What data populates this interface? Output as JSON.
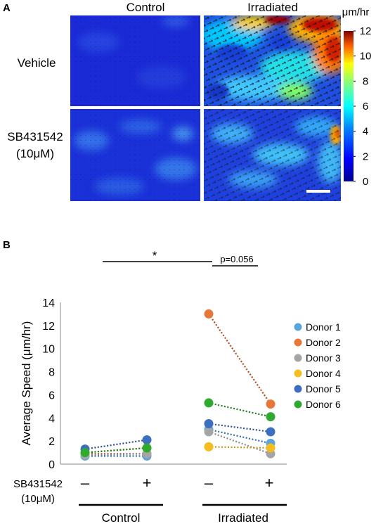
{
  "panel_a": {
    "label": "A",
    "col_labels": [
      "Control",
      "Irradiated"
    ],
    "row_labels": [
      [
        "Vehicle"
      ],
      [
        "SB431542",
        "(10μM)"
      ]
    ],
    "colorbar": {
      "unit": "μm/hr",
      "ticks": [
        0,
        2,
        4,
        6,
        8,
        10,
        12
      ]
    }
  },
  "panel_b": {
    "label": "B",
    "significance": {
      "star": "*",
      "p_text": "p=0.056"
    },
    "x_rows": {
      "treatment_label": [
        "SB431542",
        "(10μM)"
      ],
      "signs": [
        "–",
        "+",
        "–",
        "+"
      ],
      "groups": [
        "Control",
        "Irradiated"
      ]
    }
  },
  "chart_data": {
    "type": "line",
    "ylabel": "Average Speed (μm/hr)",
    "ylim": [
      0,
      14
    ],
    "yticks": [
      0,
      2,
      4,
      6,
      8,
      10,
      12,
      14
    ],
    "x": [
      1,
      2,
      3,
      4
    ],
    "series": [
      {
        "name": "Donor 1",
        "color": "#5aa6dc",
        "values": [
          0.7,
          0.7,
          3.0,
          1.8
        ]
      },
      {
        "name": "Donor 2",
        "color": "#e8773a",
        "values": [
          0.9,
          0.9,
          13.0,
          5.2
        ]
      },
      {
        "name": "Donor 3",
        "color": "#a5a5a5",
        "values": [
          0.8,
          0.9,
          2.8,
          0.9
        ]
      },
      {
        "name": "Donor 4",
        "color": "#f5bd1f",
        "values": [
          1.0,
          1.4,
          1.5,
          1.4
        ]
      },
      {
        "name": "Donor 5",
        "color": "#3d6fc1",
        "values": [
          1.3,
          2.1,
          3.5,
          2.8
        ]
      },
      {
        "name": "Donor 6",
        "color": "#2eab2e",
        "values": [
          1.0,
          1.4,
          5.3,
          4.1
        ]
      }
    ],
    "line_colors": [
      "#2e6fa8",
      "#b24a1a",
      "#8a8a8a",
      "#c9941a",
      "#2c4f8f",
      "#1e7a1e"
    ]
  }
}
